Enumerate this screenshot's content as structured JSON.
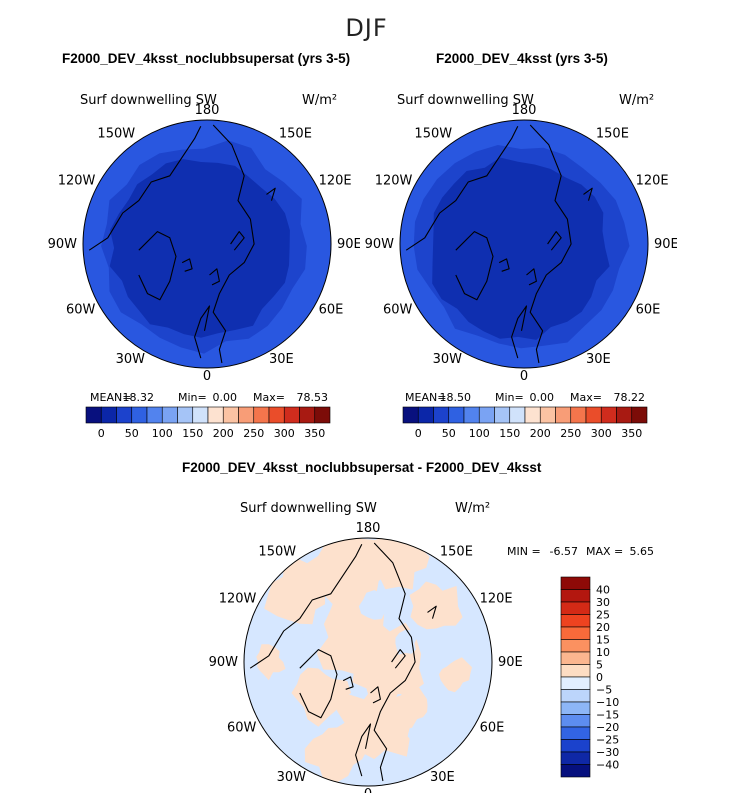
{
  "main_title": "DJF",
  "colors": {
    "ocean_outer": "#2957e0",
    "ocean_mid": "#1d44cc",
    "interior": "#0f2fb0",
    "diff_neg": "#d6e7ff",
    "diff_pos": "#fde1cd",
    "coast": "#000000"
  },
  "panels": [
    {
      "title": "F2000_DEV_4ksst_noclubbsupersat (yrs 3-5)",
      "var_label": "Surf downwelling SW",
      "units": "W/m²",
      "stats": {
        "mean_label": "MEAN=",
        "mean": "18.32",
        "min_label": "Min=",
        "min": "0.00",
        "max_label": "Max=",
        "max": "78.53"
      }
    },
    {
      "title": "F2000_DEV_4ksst (yrs 3-5)",
      "var_label": "Surf downwelling SW",
      "units": "W/m²",
      "stats": {
        "mean_label": "MEAN=",
        "mean": "18.50",
        "min_label": "Min=",
        "min": "0.00",
        "max_label": "Max=",
        "max": "78.22"
      }
    }
  ],
  "diff_panel": {
    "title": "F2000_DEV_4ksst_noclubbsupersat - F2000_DEV_4ksst",
    "var_label": "Surf downwelling SW",
    "units": "W/m²",
    "stats": {
      "min_label": "MIN =",
      "min": "-6.57",
      "max_label": "MAX =",
      "max": "5.65"
    }
  },
  "longitude_labels": {
    "top": "180",
    "bottom": "0",
    "upper_left": "150W",
    "upper_right": "150E",
    "mid_upper_left": "120W",
    "mid_upper_right": "120E",
    "left": "90W",
    "right": "90E",
    "mid_lower_left": "60W",
    "mid_lower_right": "60E",
    "lower_left": "30W",
    "lower_right": "30E"
  },
  "chart_data": [
    {
      "type": "heatmap",
      "projection": "north polar stereographic",
      "title": "F2000_DEV_4ksst_noclubbsupersat (yrs 3-5)",
      "variable": "Surf downwelling SW",
      "units": "W/m²",
      "mean": 18.32,
      "min": 0.0,
      "max": 78.53,
      "colorbar": {
        "tick_labels": [
          "0",
          "50",
          "100",
          "150",
          "200",
          "250",
          "300",
          "350"
        ],
        "colors": [
          "#08107e",
          "#0b26a8",
          "#1c42cc",
          "#2f61e2",
          "#5283ee",
          "#7aa3f3",
          "#a5c4f7",
          "#d0e2fb",
          "#fde2d0",
          "#fbc3a3",
          "#f89d77",
          "#f4754c",
          "#ea4d2a",
          "#d02c1d",
          "#a81a12",
          "#7c0c08"
        ]
      },
      "field_levels_present": [
        0,
        25,
        50
      ]
    },
    {
      "type": "heatmap",
      "projection": "north polar stereographic",
      "title": "F2000_DEV_4ksst (yrs 3-5)",
      "variable": "Surf downwelling SW",
      "units": "W/m²",
      "mean": 18.5,
      "min": 0.0,
      "max": 78.22,
      "colorbar": {
        "tick_labels": [
          "0",
          "50",
          "100",
          "150",
          "200",
          "250",
          "300",
          "350"
        ],
        "colors": [
          "#08107e",
          "#0b26a8",
          "#1c42cc",
          "#2f61e2",
          "#5283ee",
          "#7aa3f3",
          "#a5c4f7",
          "#d0e2fb",
          "#fde2d0",
          "#fbc3a3",
          "#f89d77",
          "#f4754c",
          "#ea4d2a",
          "#d02c1d",
          "#a81a12",
          "#7c0c08"
        ]
      },
      "field_levels_present": [
        0,
        25,
        50
      ]
    },
    {
      "type": "heatmap",
      "projection": "north polar stereographic",
      "title": "F2000_DEV_4ksst_noclubbsupersat - F2000_DEV_4ksst",
      "variable": "Surf downwelling SW",
      "units": "W/m²",
      "min": -6.57,
      "max": 5.65,
      "colorbar": {
        "orientation": "vertical",
        "tick_labels": [
          "40",
          "30",
          "25",
          "20",
          "15",
          "10",
          "5",
          "0",
          "−5",
          "−10",
          "−15",
          "−20",
          "−25",
          "−30",
          "−40"
        ],
        "colors": [
          "#8e0a07",
          "#b3170f",
          "#d42a16",
          "#ee4320",
          "#f86a3a",
          "#fb9160",
          "#fbb68f",
          "#fdddc3",
          "#e2efff",
          "#bcd5fb",
          "#8db6f6",
          "#5d8df0",
          "#3264e4",
          "#1b42cc",
          "#0f28a6",
          "#06107e"
        ]
      },
      "field_levels_present": [
        -5,
        0,
        5
      ]
    }
  ]
}
